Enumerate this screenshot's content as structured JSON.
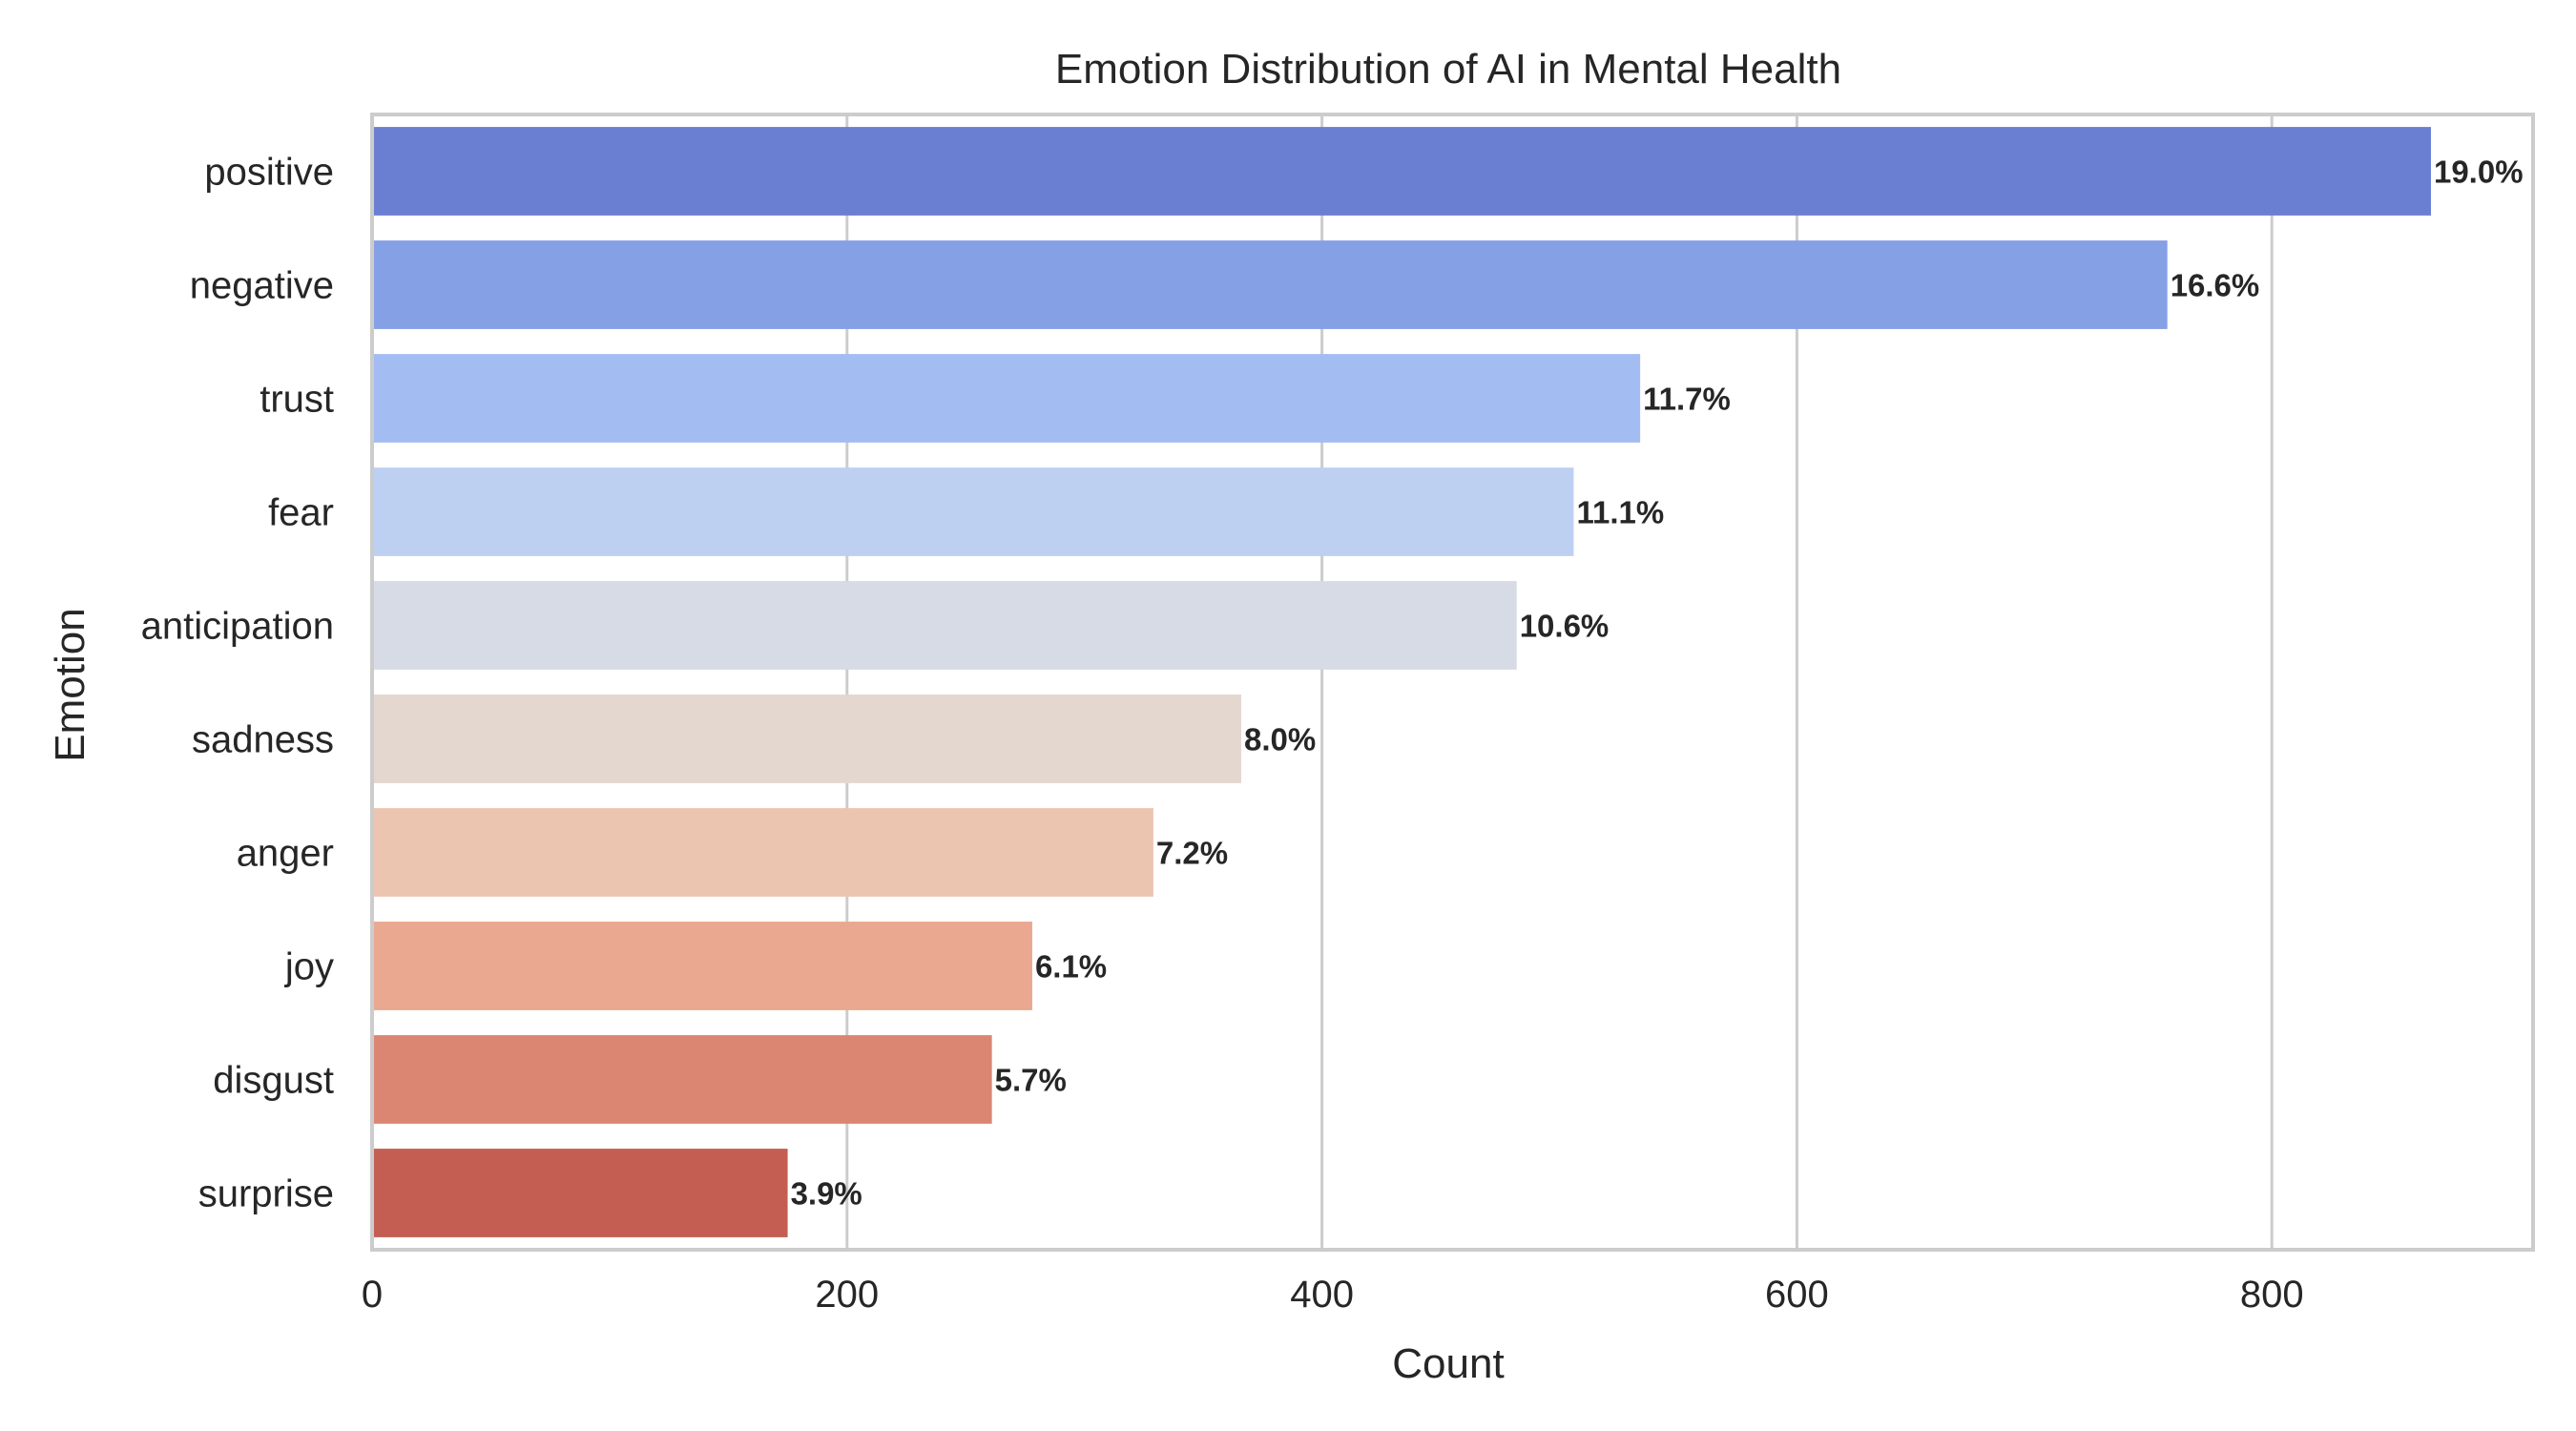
{
  "chart_data": {
    "type": "bar",
    "orientation": "horizontal",
    "title": "Emotion Distribution of AI in Mental Health",
    "xlabel": "Count",
    "ylabel": "Emotion",
    "xlim": [
      0,
      910
    ],
    "xticks": [
      0,
      200,
      400,
      600,
      800
    ],
    "grid": "vertical",
    "categories": [
      "positive",
      "negative",
      "trust",
      "fear",
      "anticipation",
      "sadness",
      "anger",
      "joy",
      "disgust",
      "surprise"
    ],
    "values": [
      867,
      756,
      534,
      506,
      482,
      366,
      329,
      278,
      261,
      175
    ],
    "labels": [
      "19.0%",
      "16.6%",
      "11.7%",
      "11.1%",
      "10.6%",
      "8.0%",
      "7.2%",
      "6.1%",
      "5.7%",
      "3.9%"
    ],
    "colors": [
      "#6a7fd1",
      "#86a0e6",
      "#a3bdf3",
      "#bed0f2",
      "#d6dbe6",
      "#e4d7cf",
      "#ecc5b1",
      "#e9a88f",
      "#db8673",
      "#c45e53"
    ]
  }
}
